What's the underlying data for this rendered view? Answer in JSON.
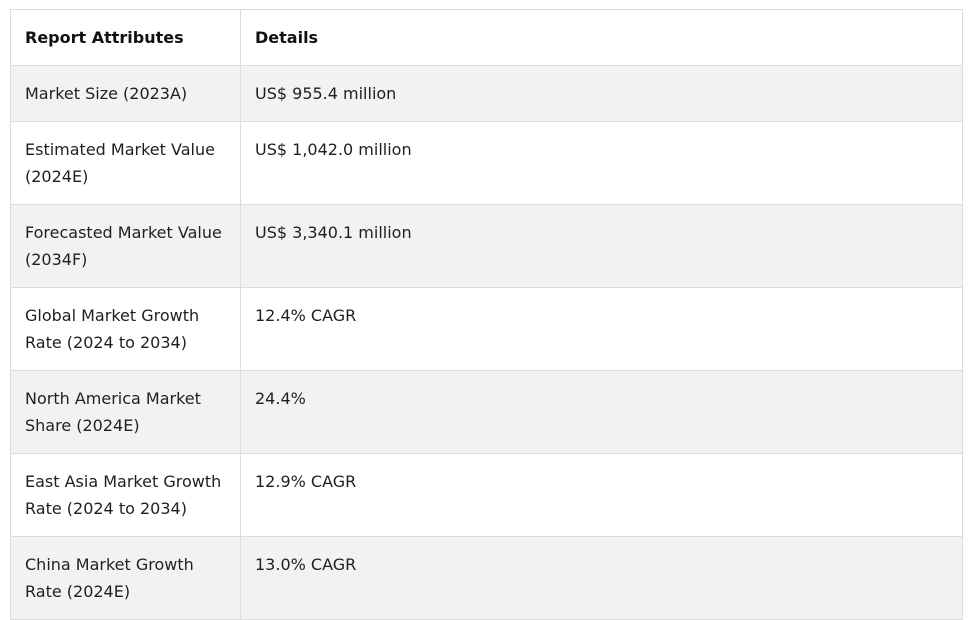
{
  "table": {
    "headers": [
      "Report Attributes",
      "Details"
    ],
    "rows": [
      {
        "attribute": "Market Size (2023A)",
        "detail": "US$ 955.4 million"
      },
      {
        "attribute": "Estimated Market Value (2024E)",
        "detail": "US$ 1,042.0 million"
      },
      {
        "attribute": "Forecasted Market Value (2034F)",
        "detail": "US$ 3,340.1 million"
      },
      {
        "attribute": "Global Market Growth Rate (2024 to 2034)",
        "detail": "12.4% CAGR"
      },
      {
        "attribute": "North America Market Share (2024E)",
        "detail": "24.4%"
      },
      {
        "attribute": "East Asia Market Growth Rate (2024 to 2034)",
        "detail": "12.9% CAGR"
      },
      {
        "attribute": "China Market Growth Rate (2024E)",
        "detail": "13.0% CAGR"
      }
    ]
  }
}
